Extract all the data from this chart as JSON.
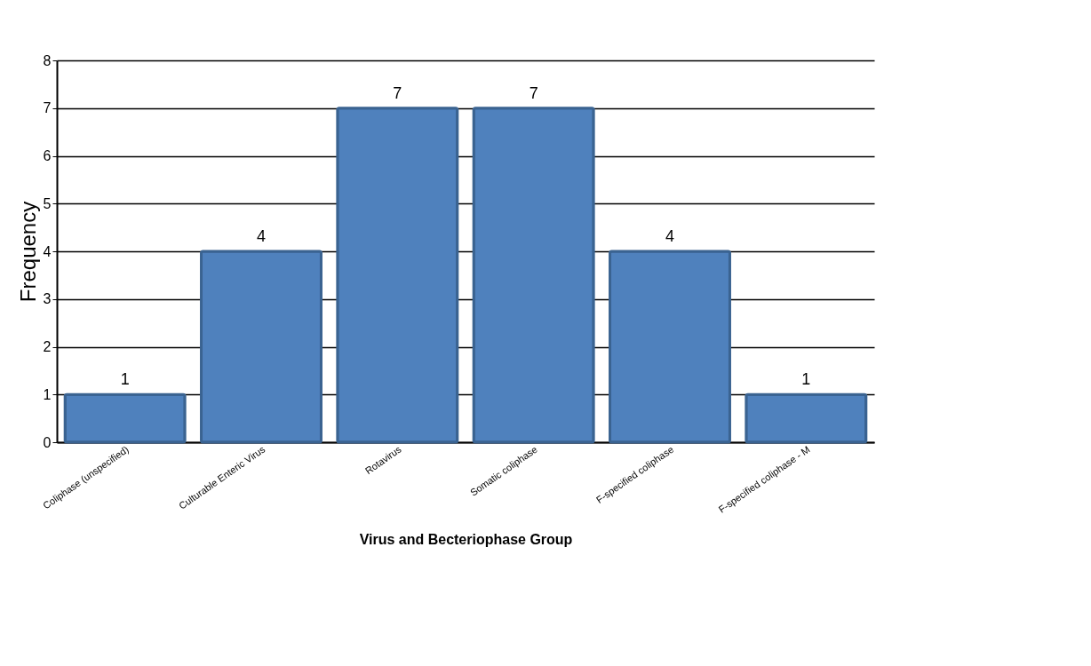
{
  "chart_data": {
    "type": "bar",
    "xlabel": "Virus and Becteriophase Group",
    "ylabel": "Frequency",
    "categories": [
      "Coliphase (unspecified)",
      "Culturable Enteric Virus",
      "Rotavirus",
      "Somatic coliphase",
      "F-specified coliphase",
      "F-specified coliphase - M"
    ],
    "values": [
      1,
      4,
      7,
      7,
      4,
      1
    ],
    "color": "#4f81bd",
    "ylim": [
      0,
      8
    ],
    "yticks": [
      0,
      1,
      2,
      3,
      4,
      5,
      6,
      7,
      8
    ],
    "grid": "y",
    "data_labels": true
  }
}
